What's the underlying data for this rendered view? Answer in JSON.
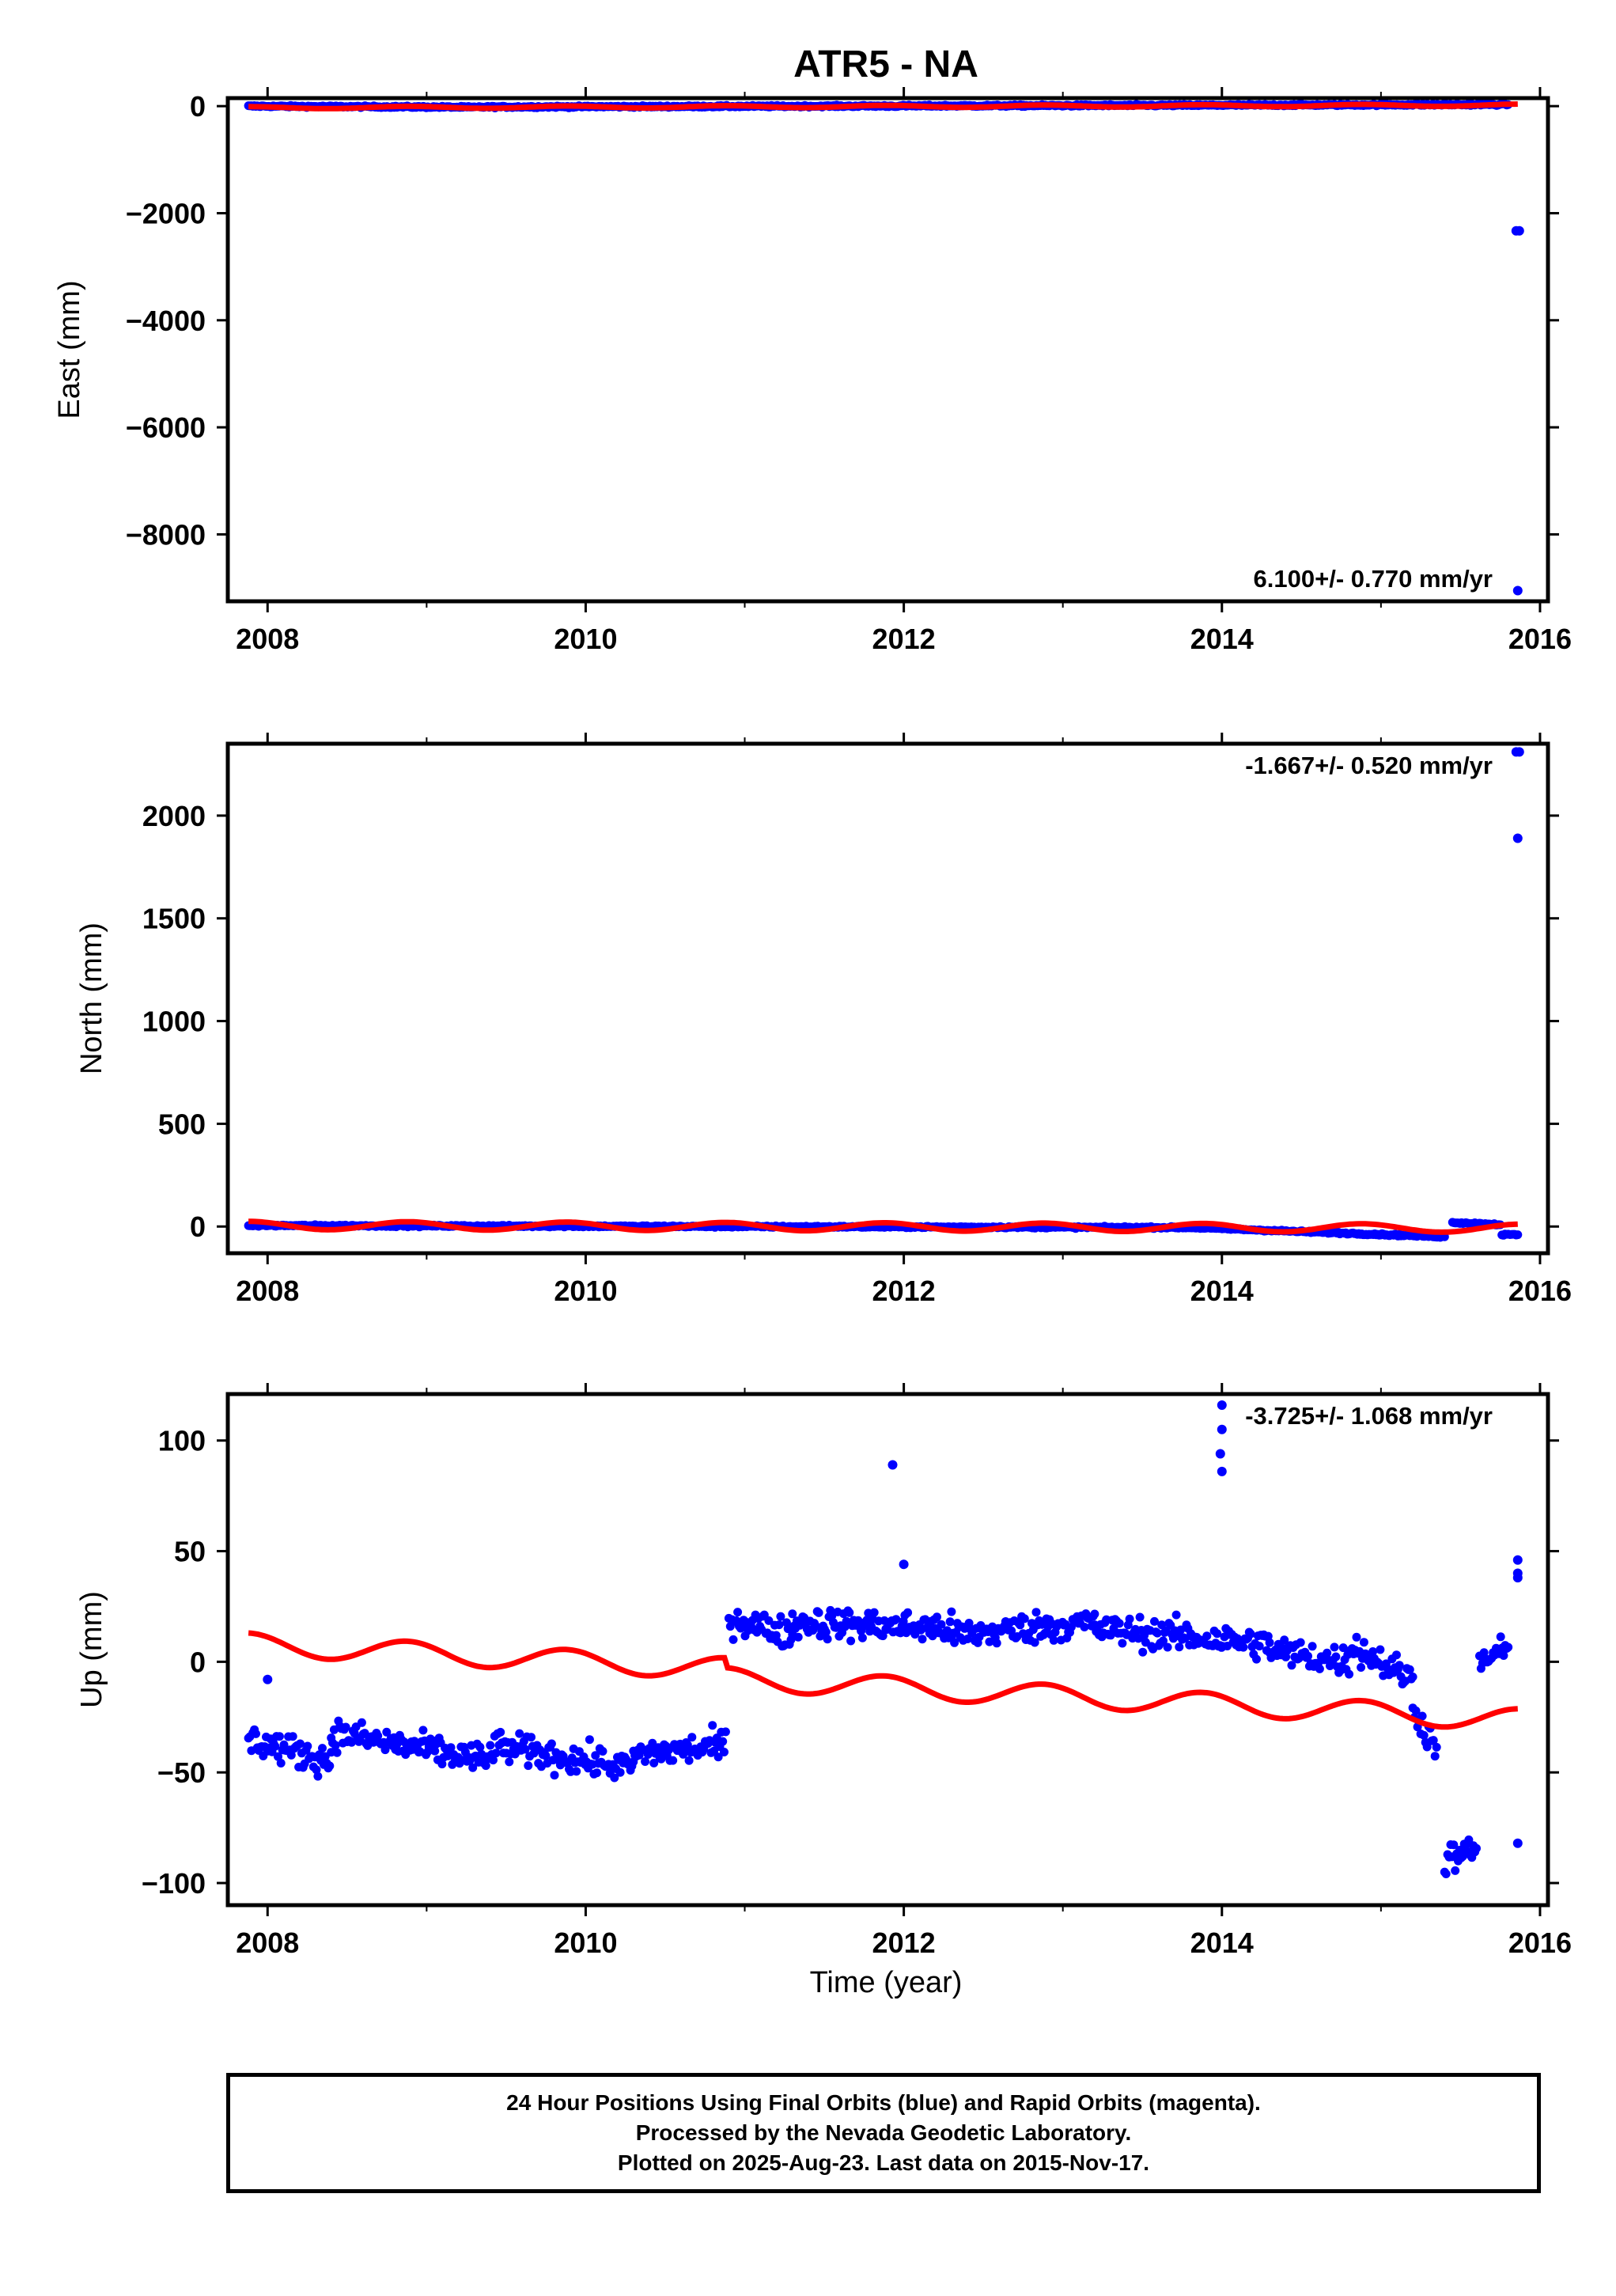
{
  "figure": {
    "title": "ATR5 - NA",
    "xlabel": "Time (year)",
    "footer": [
      "24 Hour Positions Using Final Orbits (blue) and Rapid Orbits (magenta).",
      "Processed by the Nevada Geodetic Laboratory.",
      "Plotted on 2025-Aug-23. Last data on 2015-Nov-17."
    ],
    "colors": {
      "final": "#0000ff",
      "model": "#ff0000",
      "frame": "#000000"
    }
  },
  "chart_data": [
    {
      "type": "scatter",
      "ylabel": "East (mm)",
      "xlim": [
        2007.75,
        2016.05
      ],
      "ylim": [
        -9250,
        150
      ],
      "xticks": [
        2008,
        2010,
        2012,
        2014,
        2016
      ],
      "yticks": [
        0,
        -2000,
        -4000,
        -6000,
        -8000
      ],
      "rate": "6.100+/- 0.770 mm/yr",
      "series": [
        {
          "kind": "points",
          "segments": [
            {
              "x": [
                2007.88,
                2009.3
              ],
              "y": [
                0,
                -20
              ]
            },
            {
              "x": [
                2009.33,
                2015.8
              ],
              "y": [
                -15,
                30
              ]
            }
          ],
          "points": [
            [
              2015.85,
              -2330
            ],
            [
              2015.87,
              -2330
            ],
            [
              2015.86,
              -9050
            ]
          ]
        },
        {
          "kind": "model",
          "x0": 2007.88,
          "x1": 2015.86,
          "y0": -30,
          "slope": 6.1,
          "amp": 20
        }
      ]
    },
    {
      "type": "scatter",
      "ylabel": "North (mm)",
      "xlim": [
        2007.75,
        2016.05
      ],
      "ylim": [
        -130,
        2350
      ],
      "xticks": [
        2008,
        2010,
        2012,
        2014,
        2016
      ],
      "yticks": [
        0,
        500,
        1000,
        1500,
        2000
      ],
      "rate": "-1.667+/- 0.520 mm/yr",
      "series": [
        {
          "kind": "points",
          "segments": [
            {
              "x": [
                2007.88,
                2013.8
              ],
              "y": [
                5,
                -5
              ]
            },
            {
              "x": [
                2013.8,
                2015.4
              ],
              "y": [
                -5,
                -50
              ]
            },
            {
              "x": [
                2015.45,
                2015.75
              ],
              "y": [
                20,
                10
              ]
            },
            {
              "x": [
                2015.76,
                2015.86
              ],
              "y": [
                -40,
                -40
              ]
            }
          ],
          "points": [
            [
              2015.85,
              2310
            ],
            [
              2015.87,
              2310
            ],
            [
              2015.86,
              1890
            ]
          ]
        },
        {
          "kind": "model",
          "x0": 2007.88,
          "x1": 2015.86,
          "y0": 5,
          "slope": -1.667,
          "amp": 20
        }
      ]
    },
    {
      "type": "scatter",
      "ylabel": "Up (mm)",
      "xlim": [
        2007.75,
        2016.05
      ],
      "ylim": [
        -110,
        121
      ],
      "xticks": [
        2008,
        2010,
        2012,
        2014,
        2016
      ],
      "yticks": [
        100,
        50,
        0,
        -50,
        -100
      ],
      "rate": "-3.725+/- 1.068 mm/yr",
      "series": [
        {
          "kind": "points",
          "segments": [
            {
              "x": [
                2007.88,
                2008.4
              ],
              "y": [
                -35,
                -45
              ]
            },
            {
              "x": [
                2008.4,
                2009.4
              ],
              "y": [
                -32,
                -45
              ]
            },
            {
              "x": [
                2009.4,
                2010.3
              ],
              "y": [
                -38,
                -48
              ]
            },
            {
              "x": [
                2010.3,
                2010.88
              ],
              "y": [
                -42,
                -38
              ]
            },
            {
              "x": [
                2010.9,
                2011.3
              ],
              "y": [
                20,
                12
              ]
            },
            {
              "x": [
                2011.3,
                2012.3
              ],
              "y": [
                18,
                15
              ]
            },
            {
              "x": [
                2012.3,
                2013.2
              ],
              "y": [
                12,
                18
              ]
            },
            {
              "x": [
                2013.2,
                2014.3
              ],
              "y": [
                15,
                8
              ]
            },
            {
              "x": [
                2014.3,
                2014.8
              ],
              "y": [
                5,
                0
              ]
            },
            {
              "x": [
                2014.8,
                2015.2
              ],
              "y": [
                8,
                -8
              ]
            },
            {
              "x": [
                2015.2,
                2015.35
              ],
              "y": [
                -20,
                -40
              ]
            },
            {
              "x": [
                2015.4,
                2015.6
              ],
              "y": [
                -90,
                -85
              ]
            },
            {
              "x": [
                2015.62,
                2015.8
              ],
              "y": [
                0,
                5
              ]
            }
          ],
          "points": [
            [
              2008.0,
              -8
            ],
            [
              2011.93,
              89
            ],
            [
              2012.0,
              44
            ],
            [
              2014.0,
              116
            ],
            [
              2014.0,
              105
            ],
            [
              2013.99,
              94
            ],
            [
              2014.0,
              86
            ],
            [
              2015.86,
              46
            ],
            [
              2015.86,
              40
            ],
            [
              2015.86,
              38
            ],
            [
              2015.86,
              -82
            ]
          ]
        },
        {
          "kind": "model",
          "x0": 2007.88,
          "x1": 2015.86,
          "y0": 8,
          "slope": -3.725,
          "amp": 5,
          "offsets": [
            [
              2010.88,
              -4.5
            ]
          ]
        }
      ]
    }
  ]
}
